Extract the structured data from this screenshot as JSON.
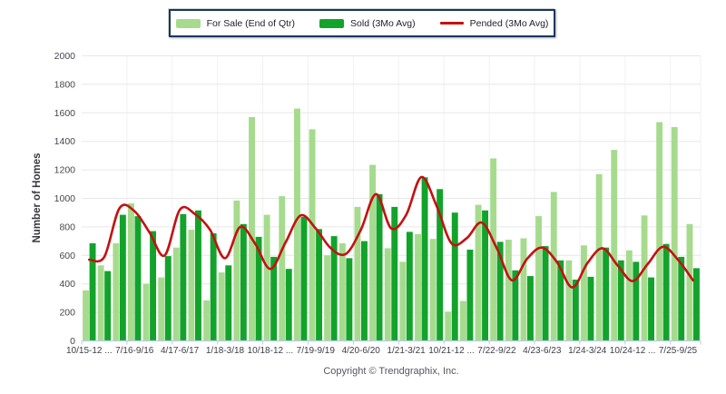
{
  "legend": {
    "for_sale_label": "For Sale (End of Qtr)",
    "sold_label": "Sold (3Mo Avg)",
    "pended_label": "Pended (3Mo Avg)"
  },
  "footer": {
    "copyright": "Copyright © Trendgraphix, Inc."
  },
  "colors": {
    "for_sale": "#A6DB8E",
    "sold": "#12A32B",
    "pended": "#C41111",
    "gridline": "#E7E7E7",
    "vgridline": "#F1F1F1",
    "axis_baseline": "#B9CDE5",
    "legend_border": "#17375D"
  },
  "chart_data": {
    "type": "bar",
    "title": "",
    "xlabel": "",
    "ylabel": "Number of Homes",
    "ylim": [
      0,
      2000
    ],
    "ytick_step": 200,
    "y_tick_labels": [
      "0",
      "200",
      "400",
      "600",
      "800",
      "1000",
      "1200",
      "1400",
      "1600",
      "1800",
      "2000"
    ],
    "grid": "horizontal",
    "legend_position": "top-center",
    "n_groups": 41,
    "x_tick_labels": [
      "10/15-12 ...",
      "7/16-9/16",
      "4/17-6/17",
      "1/18-3/18",
      "10/18-12 ...",
      "7/19-9/19",
      "4/20-6/20",
      "1/21-3/21",
      "10/21-12 ...",
      "7/22-9/22",
      "4/23-6/23",
      "1/24-3/24",
      "10/24-12 ...",
      "7/25-9/25"
    ],
    "x_tick_group_positions": [
      1,
      4,
      7,
      10,
      13,
      16,
      19,
      22,
      25,
      28,
      31,
      34,
      37,
      40
    ],
    "series": [
      {
        "name": "For Sale (End of Qtr)",
        "type": "bar",
        "color": "#A6DB8E",
        "values": [
          355,
          530,
          685,
          965,
          400,
          445,
          655,
          780,
          285,
          480,
          985,
          1570,
          885,
          1015,
          1630,
          1485,
          600,
          685,
          940,
          1235,
          650,
          555,
          750,
          715,
          205,
          280,
          955,
          1280,
          710,
          720,
          875,
          1045,
          565,
          670,
          1170,
          1340,
          635,
          880,
          1535,
          1500,
          820
        ]
      },
      {
        "name": "Sold (3Mo Avg)",
        "type": "bar",
        "color": "#12A32B",
        "values": [
          685,
          490,
          885,
          875,
          770,
          595,
          890,
          915,
          755,
          530,
          820,
          730,
          590,
          505,
          870,
          785,
          735,
          580,
          700,
          1030,
          940,
          765,
          1148,
          1065,
          900,
          640,
          915,
          695,
          495,
          455,
          665,
          565,
          430,
          450,
          655,
          565,
          555,
          445,
          680,
          590,
          510
        ]
      },
      {
        "name": "Pended (3Mo Avg)",
        "type": "line",
        "color": "#C41111",
        "values": [
          570,
          590,
          930,
          910,
          760,
          600,
          920,
          890,
          780,
          580,
          800,
          680,
          505,
          690,
          880,
          790,
          650,
          610,
          780,
          1030,
          790,
          885,
          1150,
          950,
          685,
          720,
          830,
          650,
          425,
          575,
          655,
          550,
          375,
          545,
          650,
          530,
          420,
          540,
          660,
          570,
          425
        ]
      }
    ]
  }
}
